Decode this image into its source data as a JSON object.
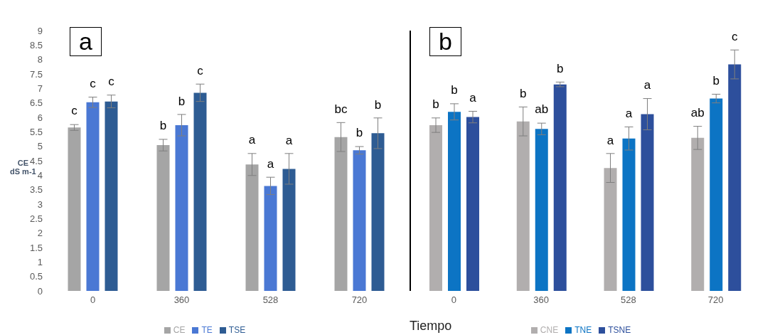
{
  "chart_data": [
    {
      "type": "bar",
      "title": "a",
      "ylabel": "CE\ndS m-1",
      "categories": [
        "0",
        "360",
        "528",
        "720"
      ],
      "ylim": [
        0,
        9
      ],
      "yticks": [
        0,
        0.5,
        1,
        1.5,
        2,
        2.5,
        3,
        3.5,
        4,
        4.5,
        5,
        5.5,
        6,
        6.5,
        7,
        7.5,
        8,
        8.5,
        9
      ],
      "legend": "bottom",
      "series": [
        {
          "name": "CE",
          "color": "#a5a5a5",
          "values": [
            5.65,
            5.04,
            4.37,
            5.32
          ],
          "errors": [
            0.1,
            0.2,
            0.38,
            0.5
          ],
          "value_labels": [
            "c",
            "b",
            "a",
            "bc"
          ]
        },
        {
          "name": "TE",
          "color": "#4a78d4",
          "values": [
            6.52,
            5.73,
            3.63,
            4.86
          ],
          "errors": [
            0.18,
            0.37,
            0.3,
            0.13
          ],
          "value_labels": [
            "c",
            "b",
            "a",
            "b"
          ]
        },
        {
          "name": "TSE",
          "color": "#2e5c93",
          "values": [
            6.55,
            6.85,
            4.22,
            5.45
          ],
          "errors": [
            0.22,
            0.3,
            0.53,
            0.53
          ],
          "value_labels": [
            "c",
            "c",
            "a",
            "b"
          ]
        }
      ]
    },
    {
      "type": "bar",
      "title": "b",
      "xlabel": "Tiempo",
      "categories": [
        "0",
        "360",
        "528",
        "720"
      ],
      "ylim": [
        0,
        9
      ],
      "tick_labels": "x",
      "legend": "bottom",
      "series": [
        {
          "name": "CNE",
          "color": "#b1aeae",
          "values": [
            5.73,
            5.86,
            4.25,
            5.29
          ],
          "errors": [
            0.25,
            0.5,
            0.5,
            0.4
          ],
          "value_labels": [
            "b",
            "b",
            "a",
            "ab"
          ]
        },
        {
          "name": "TNE",
          "color": "#0c74c4",
          "values": [
            6.19,
            5.6,
            5.27,
            6.65
          ],
          "errors": [
            0.28,
            0.2,
            0.4,
            0.15
          ],
          "value_labels": [
            "b",
            "ab",
            "a",
            "b"
          ]
        },
        {
          "name": "TSNE",
          "color": "#2d4f9c",
          "values": [
            6.01,
            7.14,
            6.11,
            7.83
          ],
          "errors": [
            0.2,
            0.08,
            0.54,
            0.5
          ],
          "value_labels": [
            "a",
            "b",
            "a",
            "c"
          ]
        }
      ]
    }
  ]
}
